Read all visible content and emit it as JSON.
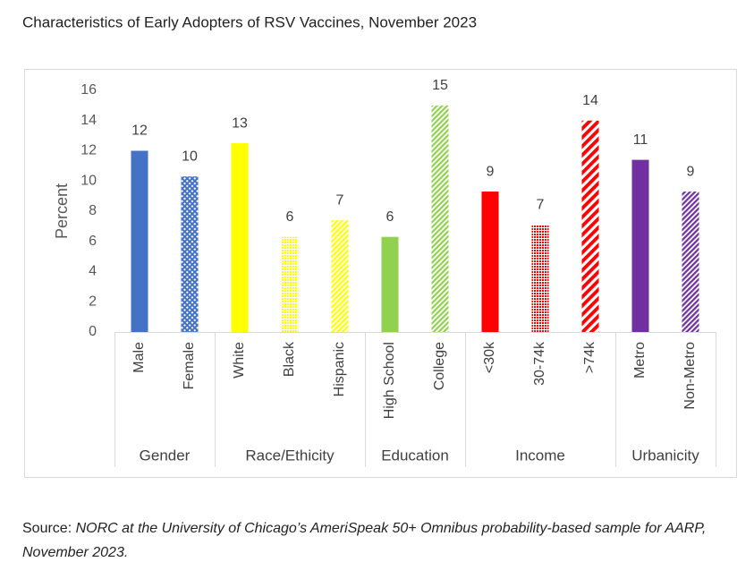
{
  "chart_data": {
    "type": "bar",
    "title": "Characteristics of Early Adopters of RSV Vaccines, November 2023",
    "y_label": "Percent",
    "ylim": [
      0,
      16
    ],
    "yticks": [
      0,
      2,
      4,
      6,
      8,
      10,
      12,
      14,
      16
    ],
    "grid": false,
    "groups": [
      {
        "name": "Gender",
        "categories": [
          "Male",
          "Female"
        ],
        "values": [
          12,
          10.3
        ],
        "value_labels": [
          "12",
          "10"
        ],
        "colors": [
          "#4472c4",
          "#4472c4"
        ],
        "patterns": [
          "solid",
          "crosshatch"
        ]
      },
      {
        "name": "Race/Ethicity",
        "categories": [
          "White",
          "Black",
          "Hispanic"
        ],
        "values": [
          12.5,
          6.3,
          7.4
        ],
        "value_labels": [
          "13",
          "6",
          "7"
        ],
        "colors": [
          "#ffff00",
          "#ffff00",
          "#ffff00"
        ],
        "patterns": [
          "solid",
          "dots",
          "diagonal"
        ]
      },
      {
        "name": "Education",
        "categories": [
          "High School",
          "College"
        ],
        "values": [
          6.3,
          15
        ],
        "value_labels": [
          "6",
          "15"
        ],
        "colors": [
          "#92d050",
          "#92d050"
        ],
        "patterns": [
          "solid",
          "diagonal"
        ]
      },
      {
        "name": "Income",
        "categories": [
          "<30k",
          "30-74k",
          ">74k"
        ],
        "values": [
          9.3,
          7.1,
          14
        ],
        "value_labels": [
          "9",
          "7",
          "14"
        ],
        "colors": [
          "#ff0000",
          "#ff0000",
          "#ff0000"
        ],
        "patterns": [
          "solid",
          "dots",
          "wide-diagonal"
        ]
      },
      {
        "name": "Urbanicity",
        "categories": [
          "Metro",
          "Non-Metro"
        ],
        "values": [
          11.4,
          9.3
        ],
        "value_labels": [
          "11",
          "9"
        ],
        "colors": [
          "#7030a0",
          "#7030a0"
        ],
        "patterns": [
          "solid",
          "diagonal"
        ]
      }
    ]
  },
  "source": {
    "label": "Source:",
    "text": "NORC at the University of Chicago’s AmeriSpeak 50+ Omnibus probability-based sample for AARP, November 2023."
  }
}
